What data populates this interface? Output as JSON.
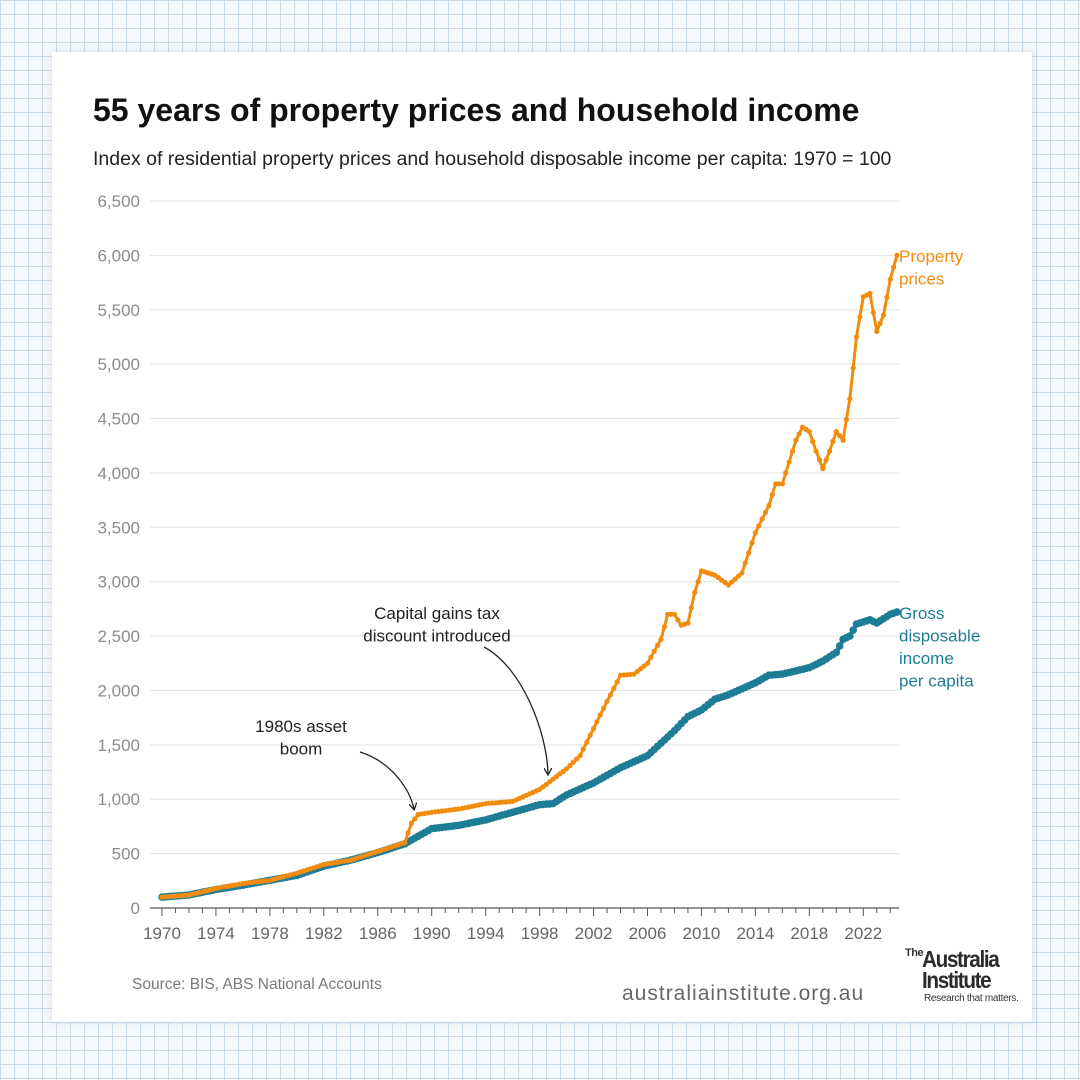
{
  "header": {
    "title": "55 years of property prices and household income",
    "subtitle": "Index of residential property prices and household disposable income per capita: 1970 = 100"
  },
  "footer": {
    "source": "Source: BIS, ABS National Accounts",
    "website": "australiainstitute.org.au"
  },
  "logo": {
    "the": "The",
    "name_line1": "Australia",
    "name_line2": "Institute",
    "tagline": "Research that matters."
  },
  "colors": {
    "property": "#f28c0f",
    "income": "#1e7d96",
    "grid": "#e3e3e3",
    "axis_text": "#8c8c8c",
    "annotation": "#222222"
  },
  "chart_data": {
    "type": "line",
    "title": "55 years of property prices and household income",
    "subtitle": "Index of residential property prices and household disposable income per capita: 1970 = 100",
    "xlabel": "",
    "ylabel": "",
    "xlim": [
      1970,
      2024.5
    ],
    "ylim": [
      0,
      6500
    ],
    "x_ticks": [
      1970,
      1974,
      1978,
      1982,
      1986,
      1990,
      1994,
      1998,
      2002,
      2006,
      2010,
      2014,
      2018,
      2022
    ],
    "x_tick_labels": [
      "1970",
      "1974",
      "1978",
      "1982",
      "1986",
      "1990",
      "1994",
      "1998",
      "2002",
      "2006",
      "2010",
      "2014",
      "2018",
      "2022"
    ],
    "y_ticks": [
      0,
      500,
      1000,
      1500,
      2000,
      2500,
      3000,
      3500,
      4000,
      4500,
      5000,
      5500,
      6000,
      6500
    ],
    "y_tick_labels": [
      "0",
      "500",
      "1,000",
      "1,500",
      "2,000",
      "2,500",
      "3,000",
      "3,500",
      "4,000",
      "4,500",
      "5,000",
      "5,500",
      "6,000",
      "6,500"
    ],
    "grid": "horizontal",
    "series": [
      {
        "name": "Property prices",
        "label": [
          "Property",
          "prices"
        ],
        "color": "#f28c0f",
        "points": [
          [
            1970,
            100
          ],
          [
            1972,
            120
          ],
          [
            1974,
            180
          ],
          [
            1976,
            225
          ],
          [
            1978,
            255
          ],
          [
            1980,
            320
          ],
          [
            1982,
            400
          ],
          [
            1984,
            440
          ],
          [
            1986,
            520
          ],
          [
            1988,
            600
          ],
          [
            1988.5,
            780
          ],
          [
            1989,
            860
          ],
          [
            1990,
            880
          ],
          [
            1992,
            910
          ],
          [
            1994,
            960
          ],
          [
            1996,
            980
          ],
          [
            1998,
            1090
          ],
          [
            2000,
            1280
          ],
          [
            2001,
            1400
          ],
          [
            2002,
            1650
          ],
          [
            2003,
            1900
          ],
          [
            2004,
            2140
          ],
          [
            2005,
            2150
          ],
          [
            2006,
            2250
          ],
          [
            2007,
            2470
          ],
          [
            2007.5,
            2700
          ],
          [
            2008,
            2700
          ],
          [
            2008.5,
            2600
          ],
          [
            2009,
            2620
          ],
          [
            2009.5,
            2900
          ],
          [
            2010,
            3100
          ],
          [
            2011,
            3060
          ],
          [
            2012,
            2970
          ],
          [
            2013,
            3080
          ],
          [
            2014,
            3450
          ],
          [
            2015,
            3700
          ],
          [
            2015.5,
            3900
          ],
          [
            2016,
            3900
          ],
          [
            2017,
            4300
          ],
          [
            2017.5,
            4420
          ],
          [
            2018,
            4380
          ],
          [
            2018.5,
            4200
          ],
          [
            2019,
            4040
          ],
          [
            2019.5,
            4200
          ],
          [
            2020,
            4380
          ],
          [
            2020.5,
            4300
          ],
          [
            2021,
            4680
          ],
          [
            2021.5,
            5250
          ],
          [
            2022,
            5620
          ],
          [
            2022.5,
            5650
          ],
          [
            2023,
            5300
          ],
          [
            2023.5,
            5450
          ],
          [
            2024,
            5780
          ],
          [
            2024.5,
            6000
          ]
        ]
      },
      {
        "name": "Gross disposable income per capita",
        "label": [
          "Gross",
          "disposable",
          "income",
          "per capita"
        ],
        "color": "#1e7d96",
        "points": [
          [
            1970,
            100
          ],
          [
            1972,
            120
          ],
          [
            1974,
            170
          ],
          [
            1976,
            210
          ],
          [
            1978,
            255
          ],
          [
            1980,
            300
          ],
          [
            1982,
            385
          ],
          [
            1984,
            440
          ],
          [
            1986,
            510
          ],
          [
            1988,
            590
          ],
          [
            1990,
            730
          ],
          [
            1992,
            760
          ],
          [
            1994,
            810
          ],
          [
            1996,
            880
          ],
          [
            1998,
            950
          ],
          [
            1999,
            960
          ],
          [
            2000,
            1040
          ],
          [
            2002,
            1150
          ],
          [
            2004,
            1290
          ],
          [
            2006,
            1400
          ],
          [
            2008,
            1630
          ],
          [
            2009,
            1760
          ],
          [
            2010,
            1820
          ],
          [
            2011,
            1920
          ],
          [
            2012,
            1960
          ],
          [
            2014,
            2070
          ],
          [
            2015,
            2140
          ],
          [
            2016,
            2150
          ],
          [
            2018,
            2210
          ],
          [
            2019,
            2270
          ],
          [
            2020,
            2350
          ],
          [
            2020.5,
            2470
          ],
          [
            2021,
            2500
          ],
          [
            2021.5,
            2610
          ],
          [
            2022,
            2630
          ],
          [
            2022.5,
            2650
          ],
          [
            2023,
            2620
          ],
          [
            2023.5,
            2660
          ],
          [
            2024,
            2700
          ],
          [
            2024.5,
            2720
          ]
        ]
      }
    ],
    "annotations": [
      {
        "text": [
          "1980s asset",
          "boom"
        ],
        "target": [
          1988.8,
          880
        ]
      },
      {
        "text": [
          "Capital gains tax",
          "discount introduced"
        ],
        "target": [
          1999.5,
          1200
        ]
      }
    ]
  }
}
